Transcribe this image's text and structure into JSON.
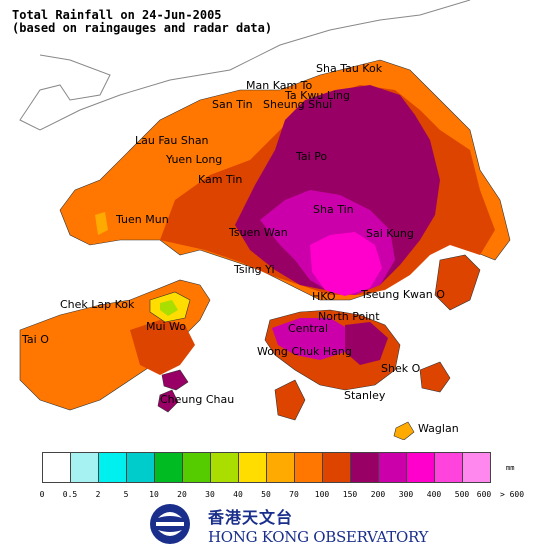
{
  "title_line1": "Total Rainfall on 24-Jun-2005",
  "title_line2": "(based on raingauges and radar data)",
  "places": [
    {
      "name": "Sha Tau Kok"
    },
    {
      "name": "Man Kam To"
    },
    {
      "name": "Ta Kwu Ling"
    },
    {
      "name": "San Tin"
    },
    {
      "name": "Sheung Shui"
    },
    {
      "name": "Lau Fau Shan"
    },
    {
      "name": "Yuen Long"
    },
    {
      "name": "Kam Tin"
    },
    {
      "name": "Tai Po"
    },
    {
      "name": "Tuen Mun"
    },
    {
      "name": "Sha Tin"
    },
    {
      "name": "Tsuen Wan"
    },
    {
      "name": "Sai Kung"
    },
    {
      "name": "Tsing Yi"
    },
    {
      "name": "Chek Lap Kok"
    },
    {
      "name": "Tseung Kwan O"
    },
    {
      "name": "HKO"
    },
    {
      "name": "North Point"
    },
    {
      "name": "Mui Wo"
    },
    {
      "name": "Central"
    },
    {
      "name": "Tai O"
    },
    {
      "name": "Wong Chuk Hang"
    },
    {
      "name": "Shek O"
    },
    {
      "name": "Stanley"
    },
    {
      "name": "Cheung Chau"
    },
    {
      "name": "Waglan"
    }
  ],
  "legend": {
    "unit": "mm",
    "colors": [
      "#ffffff",
      "#a6f2f2",
      "#00f0f0",
      "#00cccc",
      "#00bb22",
      "#55cc00",
      "#aadd00",
      "#ffdd00",
      "#ffaa00",
      "#ff7700",
      "#dd4400",
      "#990066",
      "#cc00aa",
      "#ff00cc",
      "#ff44dd",
      "#ff88ee",
      "#ffccf5",
      "#ffe6fa"
    ],
    "ticks": [
      "0",
      "0.5",
      "2",
      "5",
      "10",
      "20",
      "30",
      "40",
      "50",
      "70",
      "100",
      "150",
      "200",
      "300",
      "400",
      "500",
      "600",
      "> 600"
    ]
  },
  "logo": {
    "chinese": "香港天文台",
    "english": "HONG KONG OBSERVATORY"
  }
}
